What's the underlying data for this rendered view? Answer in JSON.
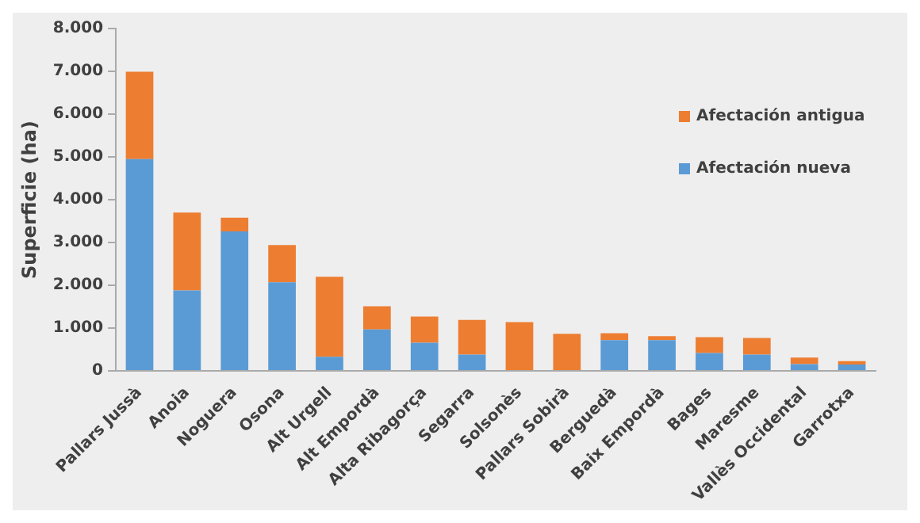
{
  "chart_data": {
    "type": "bar",
    "stacked": true,
    "ylabel": "Superficie (ha)",
    "categories": [
      "Pallars Jussà",
      "Anoia",
      "Noguera",
      "Osona",
      "Alt Urgell",
      "Alt Empordà",
      "Alta Ribagorça",
      "Segarra",
      "Solsonès",
      "Pallars Sobirà",
      "Berguedà",
      "Baix Empordà",
      "Bages",
      "Maresme",
      "Vallès Occidental",
      "Garrotxa"
    ],
    "series": [
      {
        "name": "Afectación nueva",
        "color": "#5b9bd5",
        "values": [
          4950,
          1880,
          3260,
          2070,
          330,
          970,
          660,
          380,
          null,
          0,
          720,
          720,
          420,
          380,
          160,
          150
        ]
      },
      {
        "name": "Afectación antigua",
        "color": "#ed7d31",
        "values": [
          2040,
          1820,
          320,
          870,
          1870,
          540,
          610,
          810,
          1140,
          870,
          160,
          90,
          370,
          390,
          150,
          80
        ]
      }
    ],
    "ylim": [
      0,
      8000
    ],
    "yticks": [
      {
        "value": 0,
        "label": "0"
      },
      {
        "value": 1000,
        "label": "1.000"
      },
      {
        "value": 2000,
        "label": "2.000"
      },
      {
        "value": 3000,
        "label": "3.000"
      },
      {
        "value": 4000,
        "label": "4.000"
      },
      {
        "value": 5000,
        "label": "5.000"
      },
      {
        "value": 6000,
        "label": "6.000"
      },
      {
        "value": 7000,
        "label": "7.000"
      },
      {
        "value": 8000,
        "label": "8.000"
      }
    ],
    "grid": false,
    "legend": "top right"
  }
}
